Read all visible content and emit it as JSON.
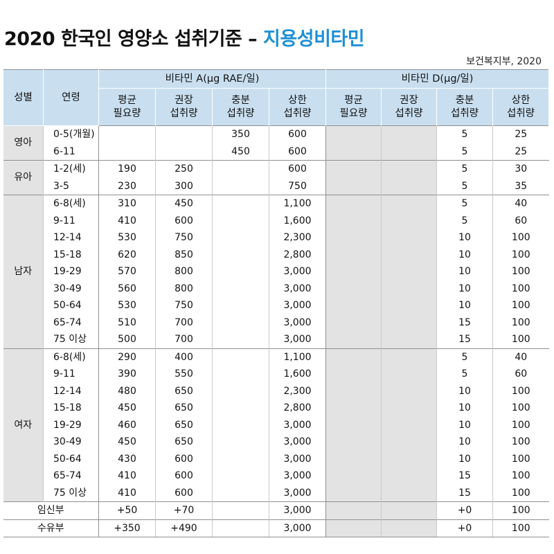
{
  "title": {
    "main": "2020 한국인 영양소 섭취기준 – ",
    "highlight": "지용성비타민"
  },
  "source": "보건복지부, 2020",
  "headers": {
    "sex": "성별",
    "age": "연령",
    "vitA": "비타민 A(μg RAE/일)",
    "vitD": "비타민 D(μg/일)",
    "sub": [
      [
        "평균",
        "필요량"
      ],
      [
        "권장",
        "섭취량"
      ],
      [
        "충분",
        "섭취량"
      ],
      [
        "상한",
        "섭취량"
      ],
      [
        "평균",
        "필요량"
      ],
      [
        "권장",
        "섭취량"
      ],
      [
        "충분",
        "섭취량"
      ],
      [
        "상한",
        "섭취량"
      ]
    ]
  },
  "groups": [
    {
      "name": "영아",
      "rows": [
        {
          "age": "0-5(개월)",
          "a": [
            "",
            "",
            "350",
            "600"
          ],
          "d": [
            "",
            "",
            "5",
            "25"
          ]
        },
        {
          "age": "6-11",
          "a": [
            "",
            "",
            "450",
            "600"
          ],
          "d": [
            "",
            "",
            "5",
            "25"
          ]
        }
      ]
    },
    {
      "name": "유아",
      "rows": [
        {
          "age": "1-2(세)",
          "a": [
            "190",
            "250",
            "",
            "600"
          ],
          "d": [
            "",
            "",
            "5",
            "30"
          ]
        },
        {
          "age": "3-5",
          "a": [
            "230",
            "300",
            "",
            "750"
          ],
          "d": [
            "",
            "",
            "5",
            "35"
          ]
        }
      ]
    },
    {
      "name": "남자",
      "rows": [
        {
          "age": "6-8(세)",
          "a": [
            "310",
            "450",
            "",
            "1,100"
          ],
          "d": [
            "",
            "",
            "5",
            "40"
          ]
        },
        {
          "age": "9-11",
          "a": [
            "410",
            "600",
            "",
            "1,600"
          ],
          "d": [
            "",
            "",
            "5",
            "60"
          ]
        },
        {
          "age": "12-14",
          "a": [
            "530",
            "750",
            "",
            "2,300"
          ],
          "d": [
            "",
            "",
            "10",
            "100"
          ]
        },
        {
          "age": "15-18",
          "a": [
            "620",
            "850",
            "",
            "2,800"
          ],
          "d": [
            "",
            "",
            "10",
            "100"
          ]
        },
        {
          "age": "19-29",
          "a": [
            "570",
            "800",
            "",
            "3,000"
          ],
          "d": [
            "",
            "",
            "10",
            "100"
          ]
        },
        {
          "age": "30-49",
          "a": [
            "560",
            "800",
            "",
            "3,000"
          ],
          "d": [
            "",
            "",
            "10",
            "100"
          ]
        },
        {
          "age": "50-64",
          "a": [
            "530",
            "750",
            "",
            "3,000"
          ],
          "d": [
            "",
            "",
            "10",
            "100"
          ]
        },
        {
          "age": "65-74",
          "a": [
            "510",
            "700",
            "",
            "3,000"
          ],
          "d": [
            "",
            "",
            "15",
            "100"
          ]
        },
        {
          "age": "75 이상",
          "a": [
            "500",
            "700",
            "",
            "3,000"
          ],
          "d": [
            "",
            "",
            "15",
            "100"
          ]
        }
      ]
    },
    {
      "name": "여자",
      "rows": [
        {
          "age": "6-8(세)",
          "a": [
            "290",
            "400",
            "",
            "1,100"
          ],
          "d": [
            "",
            "",
            "5",
            "40"
          ]
        },
        {
          "age": "9-11",
          "a": [
            "390",
            "550",
            "",
            "1,600"
          ],
          "d": [
            "",
            "",
            "5",
            "60"
          ]
        },
        {
          "age": "12-14",
          "a": [
            "480",
            "650",
            "",
            "2,300"
          ],
          "d": [
            "",
            "",
            "10",
            "100"
          ]
        },
        {
          "age": "15-18",
          "a": [
            "450",
            "650",
            "",
            "2,800"
          ],
          "d": [
            "",
            "",
            "10",
            "100"
          ]
        },
        {
          "age": "19-29",
          "a": [
            "460",
            "650",
            "",
            "3,000"
          ],
          "d": [
            "",
            "",
            "10",
            "100"
          ]
        },
        {
          "age": "30-49",
          "a": [
            "450",
            "650",
            "",
            "3,000"
          ],
          "d": [
            "",
            "",
            "10",
            "100"
          ]
        },
        {
          "age": "50-64",
          "a": [
            "430",
            "600",
            "",
            "3,000"
          ],
          "d": [
            "",
            "",
            "10",
            "100"
          ]
        },
        {
          "age": "65-74",
          "a": [
            "410",
            "600",
            "",
            "3,000"
          ],
          "d": [
            "",
            "",
            "15",
            "100"
          ]
        },
        {
          "age": "75 이상",
          "a": [
            "410",
            "600",
            "",
            "3,000"
          ],
          "d": [
            "",
            "",
            "15",
            "100"
          ]
        }
      ]
    }
  ],
  "special": [
    {
      "label": "임신부",
      "a": [
        "+50",
        "+70",
        "",
        "3,000"
      ],
      "d": [
        "",
        "",
        "+0",
        "100"
      ]
    },
    {
      "label": "수유부",
      "a": [
        "+350",
        "+490",
        "",
        "3,000"
      ],
      "d": [
        "",
        "",
        "+0",
        "100"
      ]
    }
  ],
  "colors": {
    "header_bg": "#c9dff0",
    "gray_bg": "#e3e3e3",
    "title_highlight": "#1e8fd6"
  }
}
